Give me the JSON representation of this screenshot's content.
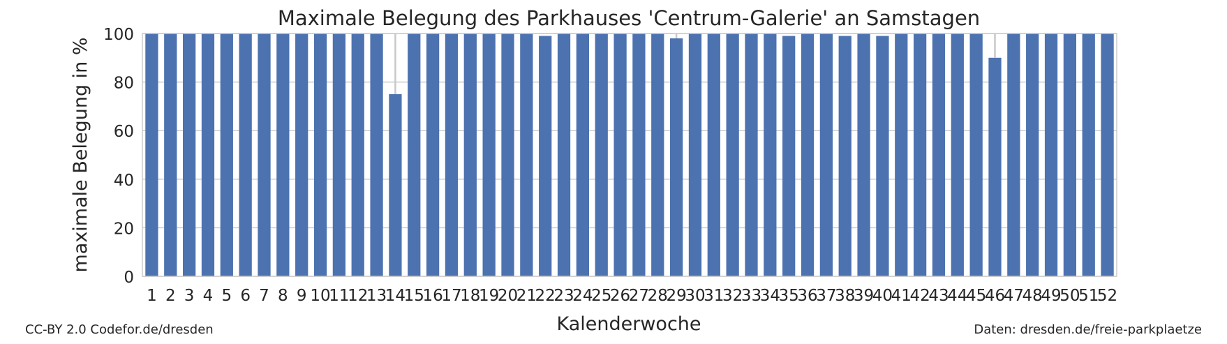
{
  "chart_data": {
    "type": "bar",
    "title": "Maximale Belegung des Parkhauses 'Centrum-Galerie' an Samstagen",
    "xlabel": "Kalenderwoche",
    "ylabel": "maximale Belegung in %",
    "ylim": [
      0,
      100
    ],
    "yticks": [
      0,
      20,
      40,
      60,
      80,
      100
    ],
    "grid": true,
    "categories": [
      "1",
      "2",
      "3",
      "4",
      "5",
      "6",
      "7",
      "8",
      "9",
      "10",
      "11",
      "12",
      "13",
      "14",
      "15",
      "16",
      "17",
      "18",
      "19",
      "20",
      "21",
      "22",
      "23",
      "24",
      "25",
      "26",
      "27",
      "28",
      "29",
      "30",
      "31",
      "32",
      "33",
      "34",
      "35",
      "36",
      "37",
      "38",
      "39",
      "40",
      "41",
      "42",
      "43",
      "44",
      "45",
      "46",
      "47",
      "48",
      "49",
      "50",
      "51",
      "52"
    ],
    "values": [
      100,
      100,
      100,
      100,
      100,
      100,
      100,
      100,
      100,
      100,
      100,
      100,
      100,
      75,
      100,
      100,
      100,
      100,
      100,
      100,
      100,
      99,
      100,
      100,
      100,
      100,
      100,
      100,
      98,
      100,
      100,
      100,
      100,
      100,
      99,
      100,
      100,
      99,
      100,
      99,
      100,
      100,
      100,
      100,
      100,
      90,
      100,
      100,
      100,
      100,
      100,
      100
    ],
    "error_bars": [
      0,
      0,
      0,
      0,
      0,
      0,
      0,
      0,
      0,
      0,
      0,
      0,
      0,
      25,
      0,
      0,
      0,
      0,
      0,
      0,
      0,
      0,
      0,
      0,
      0,
      0,
      0,
      0,
      2,
      0,
      0,
      0,
      0,
      0,
      0,
      0,
      0,
      0,
      0,
      0,
      0,
      0,
      0,
      0,
      0,
      10,
      0,
      0,
      0,
      0,
      0,
      0
    ],
    "bar_color": "#4c72b0",
    "grid_color": "#cccccc",
    "error_color": "#c8c8c8"
  },
  "footer": {
    "left": "CC-BY 2.0 Codefor.de/dresden",
    "right": "Daten: dresden.de/freie-parkplaetze"
  }
}
